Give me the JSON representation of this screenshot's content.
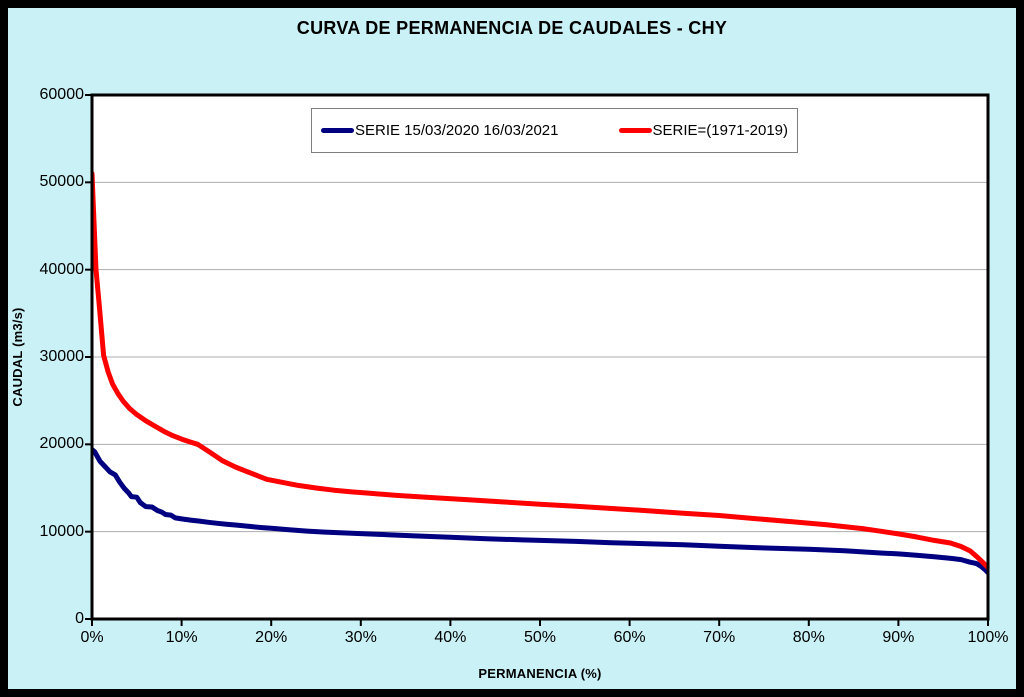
{
  "title": "CURVA DE PERMANENCIA DE CAUDALES - CHY",
  "colors": {
    "background": "#C9F1F6",
    "plot_bg": "#FFFFFF",
    "grid": "#ADADAD",
    "axis": "#000000",
    "frame_border": "#000000",
    "legend_border": "#7F7F7F",
    "series_blue": "#000080",
    "series_red": "#FF0000"
  },
  "chart_data": {
    "type": "line",
    "title": "CURVA DE PERMANENCIA DE CAUDALES - CHY",
    "xlabel": "PERMANENCIA (%)",
    "ylabel": "CAUDAL (m3/s)",
    "xlim": [
      0,
      100
    ],
    "ylim": [
      0,
      60000
    ],
    "x_ticks": [
      "0%",
      "10%",
      "20%",
      "30%",
      "40%",
      "50%",
      "60%",
      "70%",
      "80%",
      "90%",
      "100%"
    ],
    "y_ticks": [
      "0",
      "10000",
      "20000",
      "30000",
      "40000",
      "50000",
      "60000"
    ],
    "grid": "horizontal-only",
    "legend_position": "top-center-inside",
    "series": [
      {
        "name": "SERIE 15/03/2020 16/03/2021",
        "color": "#000080",
        "points": [
          [
            0,
            19400
          ],
          [
            0.3,
            19150
          ],
          [
            0.9,
            18050
          ],
          [
            1.5,
            17400
          ],
          [
            2.0,
            16850
          ],
          [
            2.6,
            16500
          ],
          [
            3.1,
            15650
          ],
          [
            3.6,
            14950
          ],
          [
            4.1,
            14430
          ],
          [
            4.4,
            14020
          ],
          [
            5.0,
            13950
          ],
          [
            5.4,
            13320
          ],
          [
            6.0,
            12870
          ],
          [
            6.7,
            12820
          ],
          [
            7.3,
            12420
          ],
          [
            7.8,
            12230
          ],
          [
            8.2,
            11960
          ],
          [
            8.8,
            11900
          ],
          [
            9.3,
            11580
          ],
          [
            10,
            11460
          ],
          [
            11,
            11320
          ],
          [
            12,
            11210
          ],
          [
            13,
            11070
          ],
          [
            14,
            10960
          ],
          [
            15,
            10860
          ],
          [
            16,
            10760
          ],
          [
            17,
            10660
          ],
          [
            18,
            10560
          ],
          [
            19,
            10470
          ],
          [
            20,
            10390
          ],
          [
            22,
            10210
          ],
          [
            24,
            10060
          ],
          [
            26,
            9950
          ],
          [
            28,
            9860
          ],
          [
            30,
            9780
          ],
          [
            33,
            9650
          ],
          [
            36,
            9510
          ],
          [
            40,
            9350
          ],
          [
            44,
            9200
          ],
          [
            48,
            9060
          ],
          [
            50,
            9000
          ],
          [
            54,
            8880
          ],
          [
            58,
            8740
          ],
          [
            62,
            8620
          ],
          [
            66,
            8500
          ],
          [
            70,
            8330
          ],
          [
            74,
            8180
          ],
          [
            78,
            8050
          ],
          [
            80,
            7980
          ],
          [
            84,
            7810
          ],
          [
            88,
            7560
          ],
          [
            90,
            7450
          ],
          [
            92,
            7300
          ],
          [
            94,
            7120
          ],
          [
            96,
            6930
          ],
          [
            97,
            6800
          ],
          [
            98,
            6500
          ],
          [
            98.7,
            6350
          ],
          [
            99.3,
            5980
          ],
          [
            99.7,
            5620
          ],
          [
            100,
            5300
          ]
        ]
      },
      {
        "name": "SERIE=(1971-2019)",
        "color": "#FF0000",
        "points": [
          [
            0,
            51000
          ],
          [
            0.2,
            46000
          ],
          [
            0.45,
            40000
          ],
          [
            0.8,
            36000
          ],
          [
            1.3,
            30200
          ],
          [
            1.8,
            28300
          ],
          [
            2.3,
            26900
          ],
          [
            2.9,
            25800
          ],
          [
            3.5,
            24900
          ],
          [
            4.2,
            24100
          ],
          [
            5,
            23400
          ],
          [
            6,
            22700
          ],
          [
            7,
            22100
          ],
          [
            8,
            21500
          ],
          [
            9,
            21000
          ],
          [
            10,
            20600
          ],
          [
            11,
            20250
          ],
          [
            11.8,
            20000
          ],
          [
            13,
            19200
          ],
          [
            14.6,
            18100
          ],
          [
            16,
            17400
          ],
          [
            17.5,
            16800
          ],
          [
            19.5,
            16000
          ],
          [
            21,
            15700
          ],
          [
            23,
            15300
          ],
          [
            25,
            15000
          ],
          [
            27,
            14750
          ],
          [
            29,
            14550
          ],
          [
            31,
            14400
          ],
          [
            34,
            14150
          ],
          [
            38,
            13900
          ],
          [
            42,
            13650
          ],
          [
            46,
            13400
          ],
          [
            50,
            13150
          ],
          [
            54,
            12900
          ],
          [
            58,
            12650
          ],
          [
            62,
            12400
          ],
          [
            66,
            12100
          ],
          [
            70,
            11850
          ],
          [
            74,
            11500
          ],
          [
            78,
            11150
          ],
          [
            82,
            10800
          ],
          [
            86,
            10350
          ],
          [
            88,
            10050
          ],
          [
            90,
            9750
          ],
          [
            92,
            9400
          ],
          [
            94,
            9000
          ],
          [
            95.8,
            8700
          ],
          [
            97,
            8300
          ],
          [
            98,
            7800
          ],
          [
            98.8,
            7100
          ],
          [
            99.4,
            6500
          ],
          [
            100,
            5900
          ]
        ]
      }
    ]
  }
}
